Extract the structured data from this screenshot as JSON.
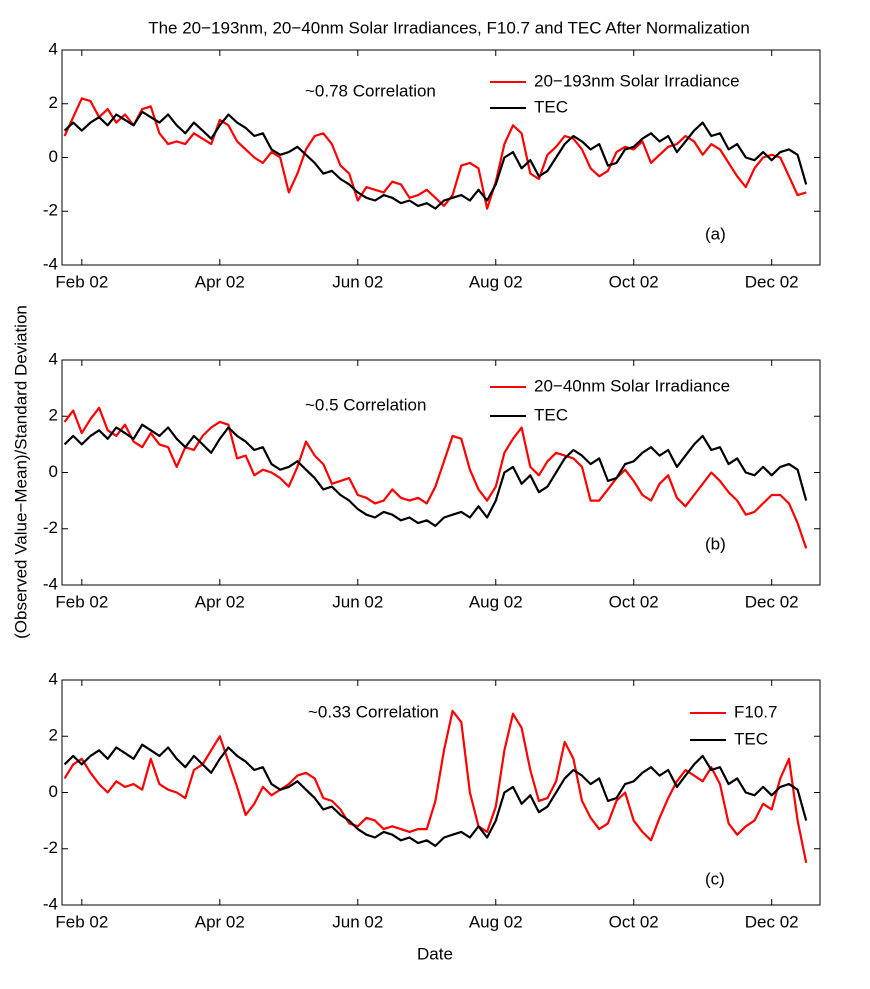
{
  "figure": {
    "title": "The 20−193nm, 20−40nm Solar Irradiances, F10.7 and TEC After Normalization",
    "xlabel": "Date",
    "ylabel": "(Observed Value−Mean)/Standard Deviation"
  },
  "chart_data": [
    {
      "type": "line",
      "annotation": "~0.78 Correlation",
      "panel_label": "(a)",
      "categories": [
        null,
        null,
        "Feb 02",
        null,
        null,
        null,
        null,
        null,
        null,
        null,
        null,
        null,
        null,
        null,
        null,
        null,
        null,
        null,
        "Apr 02",
        null,
        null,
        null,
        null,
        null,
        null,
        null,
        null,
        null,
        null,
        null,
        null,
        null,
        null,
        null,
        "Jun 02",
        null,
        null,
        null,
        null,
        null,
        null,
        null,
        null,
        null,
        null,
        null,
        null,
        null,
        null,
        null,
        "Aug 02",
        null,
        null,
        null,
        null,
        null,
        null,
        null,
        null,
        null,
        null,
        null,
        null,
        null,
        null,
        null,
        "Oct 02",
        null,
        null,
        null,
        null,
        null,
        null,
        null,
        null,
        null,
        null,
        null,
        null,
        null,
        null,
        null,
        "Dec 02",
        null,
        null,
        null,
        null
      ],
      "ylim": [
        -4,
        4
      ],
      "yticks": [
        -4,
        -2,
        0,
        2,
        4
      ],
      "series": [
        {
          "name": "20−193nm Solar Irradiance",
          "color": "#ff0000",
          "values": [
            0.8,
            1.5,
            2.2,
            2.1,
            1.5,
            1.8,
            1.3,
            1.6,
            1.2,
            1.8,
            1.9,
            0.9,
            0.5,
            0.6,
            0.5,
            0.9,
            0.7,
            0.5,
            1.4,
            1.2,
            0.6,
            0.3,
            0.0,
            -0.2,
            0.2,
            0.0,
            -1.3,
            -0.6,
            0.3,
            0.8,
            0.9,
            0.5,
            -0.3,
            -0.6,
            -1.6,
            -1.1,
            -1.2,
            -1.3,
            -0.9,
            -1.0,
            -1.5,
            -1.4,
            -1.2,
            -1.5,
            -1.8,
            -1.4,
            -0.3,
            -0.2,
            -0.4,
            -1.9,
            -0.9,
            0.5,
            1.2,
            0.9,
            -0.6,
            -0.8,
            0.1,
            0.4,
            0.8,
            0.7,
            0.3,
            -0.4,
            -0.7,
            -0.5,
            0.2,
            0.4,
            0.3,
            0.6,
            -0.2,
            0.1,
            0.4,
            0.5,
            0.8,
            0.6,
            0.1,
            0.5,
            0.3,
            -0.2,
            -0.7,
            -1.1,
            -0.4,
            0.0,
            0.1,
            0.0,
            -0.7,
            -1.4,
            -1.3
          ]
        },
        {
          "name": "TEC",
          "color": "#000000",
          "values": [
            1.0,
            1.3,
            1.0,
            1.3,
            1.5,
            1.2,
            1.6,
            1.4,
            1.2,
            1.7,
            1.5,
            1.3,
            1.6,
            1.2,
            0.9,
            1.3,
            1.0,
            0.7,
            1.2,
            1.6,
            1.3,
            1.1,
            0.8,
            0.9,
            0.3,
            0.1,
            0.2,
            0.4,
            0.1,
            -0.2,
            -0.6,
            -0.5,
            -0.8,
            -1.0,
            -1.3,
            -1.5,
            -1.6,
            -1.4,
            -1.5,
            -1.7,
            -1.6,
            -1.8,
            -1.7,
            -1.9,
            -1.6,
            -1.5,
            -1.4,
            -1.6,
            -1.2,
            -1.6,
            -1.0,
            0.0,
            0.2,
            -0.4,
            -0.1,
            -0.7,
            -0.5,
            0.0,
            0.5,
            0.8,
            0.6,
            0.3,
            0.5,
            -0.3,
            -0.2,
            0.3,
            0.4,
            0.7,
            0.9,
            0.6,
            0.8,
            0.2,
            0.6,
            1.0,
            1.3,
            0.8,
            0.9,
            0.3,
            0.5,
            0.0,
            -0.1,
            0.2,
            -0.1,
            0.2,
            0.3,
            0.1,
            -1.0
          ]
        }
      ]
    },
    {
      "type": "line",
      "annotation": "~0.5 Correlation",
      "panel_label": "(b)",
      "categories": [
        null,
        null,
        "Feb 02",
        null,
        null,
        null,
        null,
        null,
        null,
        null,
        null,
        null,
        null,
        null,
        null,
        null,
        null,
        null,
        "Apr 02",
        null,
        null,
        null,
        null,
        null,
        null,
        null,
        null,
        null,
        null,
        null,
        null,
        null,
        null,
        null,
        "Jun 02",
        null,
        null,
        null,
        null,
        null,
        null,
        null,
        null,
        null,
        null,
        null,
        null,
        null,
        null,
        null,
        "Aug 02",
        null,
        null,
        null,
        null,
        null,
        null,
        null,
        null,
        null,
        null,
        null,
        null,
        null,
        null,
        null,
        "Oct 02",
        null,
        null,
        null,
        null,
        null,
        null,
        null,
        null,
        null,
        null,
        null,
        null,
        null,
        null,
        null,
        "Dec 02",
        null,
        null,
        null,
        null
      ],
      "ylim": [
        -4,
        4
      ],
      "yticks": [
        -4,
        -2,
        0,
        2,
        4
      ],
      "series": [
        {
          "name": "20−40nm Solar Irradiance",
          "color": "#ff0000",
          "values": [
            1.8,
            2.2,
            1.4,
            1.9,
            2.3,
            1.5,
            1.3,
            1.7,
            1.1,
            0.9,
            1.4,
            1.0,
            0.9,
            0.2,
            0.9,
            0.8,
            1.3,
            1.6,
            1.8,
            1.7,
            0.5,
            0.6,
            -0.1,
            0.1,
            0.0,
            -0.2,
            -0.5,
            0.2,
            1.1,
            0.6,
            0.3,
            -0.4,
            -0.3,
            -0.2,
            -0.8,
            -0.9,
            -1.1,
            -1.0,
            -0.6,
            -0.9,
            -1.0,
            -0.9,
            -1.1,
            -0.5,
            0.4,
            1.3,
            1.2,
            0.1,
            -0.6,
            -1.0,
            -0.5,
            0.7,
            1.2,
            1.6,
            0.2,
            -0.1,
            0.4,
            0.7,
            0.6,
            0.5,
            0.2,
            -1.0,
            -1.0,
            -0.6,
            -0.2,
            0.1,
            -0.3,
            -0.8,
            -1.0,
            -0.4,
            -0.1,
            -0.9,
            -1.2,
            -0.8,
            -0.4,
            0.0,
            -0.3,
            -0.7,
            -1.0,
            -1.5,
            -1.4,
            -1.1,
            -0.8,
            -0.8,
            -1.1,
            -1.8,
            -2.7
          ]
        },
        {
          "name": "TEC",
          "color": "#000000",
          "values": [
            1.0,
            1.3,
            1.0,
            1.3,
            1.5,
            1.2,
            1.6,
            1.4,
            1.2,
            1.7,
            1.5,
            1.3,
            1.6,
            1.2,
            0.9,
            1.3,
            1.0,
            0.7,
            1.2,
            1.6,
            1.3,
            1.1,
            0.8,
            0.9,
            0.3,
            0.1,
            0.2,
            0.4,
            0.1,
            -0.2,
            -0.6,
            -0.5,
            -0.8,
            -1.0,
            -1.3,
            -1.5,
            -1.6,
            -1.4,
            -1.5,
            -1.7,
            -1.6,
            -1.8,
            -1.7,
            -1.9,
            -1.6,
            -1.5,
            -1.4,
            -1.6,
            -1.2,
            -1.6,
            -1.0,
            0.0,
            0.2,
            -0.4,
            -0.1,
            -0.7,
            -0.5,
            0.0,
            0.5,
            0.8,
            0.6,
            0.3,
            0.5,
            -0.3,
            -0.2,
            0.3,
            0.4,
            0.7,
            0.9,
            0.6,
            0.8,
            0.2,
            0.6,
            1.0,
            1.3,
            0.8,
            0.9,
            0.3,
            0.5,
            0.0,
            -0.1,
            0.2,
            -0.1,
            0.2,
            0.3,
            0.1,
            -1.0
          ]
        }
      ]
    },
    {
      "type": "line",
      "annotation": "~0.33 Correlation",
      "panel_label": "(c)",
      "categories": [
        null,
        null,
        "Feb 02",
        null,
        null,
        null,
        null,
        null,
        null,
        null,
        null,
        null,
        null,
        null,
        null,
        null,
        null,
        null,
        "Apr 02",
        null,
        null,
        null,
        null,
        null,
        null,
        null,
        null,
        null,
        null,
        null,
        null,
        null,
        null,
        null,
        "Jun 02",
        null,
        null,
        null,
        null,
        null,
        null,
        null,
        null,
        null,
        null,
        null,
        null,
        null,
        null,
        null,
        "Aug 02",
        null,
        null,
        null,
        null,
        null,
        null,
        null,
        null,
        null,
        null,
        null,
        null,
        null,
        null,
        null,
        "Oct 02",
        null,
        null,
        null,
        null,
        null,
        null,
        null,
        null,
        null,
        null,
        null,
        null,
        null,
        null,
        null,
        "Dec 02",
        null,
        null,
        null,
        null
      ],
      "ylim": [
        -4,
        4
      ],
      "yticks": [
        -4,
        -2,
        0,
        2,
        4
      ],
      "series": [
        {
          "name": "F10.7",
          "color": "#ff0000",
          "values": [
            0.5,
            1.0,
            1.2,
            0.7,
            0.3,
            0.0,
            0.4,
            0.2,
            0.3,
            0.1,
            1.2,
            0.3,
            0.1,
            0.0,
            -0.2,
            0.8,
            1.0,
            1.5,
            2.0,
            1.1,
            0.2,
            -0.8,
            -0.4,
            0.2,
            -0.1,
            0.1,
            0.3,
            0.6,
            0.7,
            0.5,
            -0.2,
            -0.3,
            -0.6,
            -1.1,
            -1.2,
            -0.9,
            -1.0,
            -1.3,
            -1.2,
            -1.3,
            -1.4,
            -1.3,
            -1.3,
            -0.3,
            1.5,
            2.9,
            2.5,
            0.0,
            -1.2,
            -1.4,
            -0.5,
            1.5,
            2.8,
            2.3,
            0.8,
            -0.3,
            -0.2,
            0.4,
            1.8,
            1.2,
            -0.3,
            -0.9,
            -1.3,
            -1.1,
            -0.3,
            0.0,
            -1.0,
            -1.4,
            -1.7,
            -0.9,
            -0.2,
            0.4,
            0.8,
            0.6,
            0.4,
            0.9,
            0.3,
            -1.1,
            -1.5,
            -1.2,
            -1.0,
            -0.4,
            -0.6,
            0.5,
            1.2,
            -1.0,
            -2.5
          ]
        },
        {
          "name": "TEC",
          "color": "#000000",
          "values": [
            1.0,
            1.3,
            1.0,
            1.3,
            1.5,
            1.2,
            1.6,
            1.4,
            1.2,
            1.7,
            1.5,
            1.3,
            1.6,
            1.2,
            0.9,
            1.3,
            1.0,
            0.7,
            1.2,
            1.6,
            1.3,
            1.1,
            0.8,
            0.9,
            0.3,
            0.1,
            0.2,
            0.4,
            0.1,
            -0.2,
            -0.6,
            -0.5,
            -0.8,
            -1.0,
            -1.3,
            -1.5,
            -1.6,
            -1.4,
            -1.5,
            -1.7,
            -1.6,
            -1.8,
            -1.7,
            -1.9,
            -1.6,
            -1.5,
            -1.4,
            -1.6,
            -1.2,
            -1.6,
            -1.0,
            0.0,
            0.2,
            -0.4,
            -0.1,
            -0.7,
            -0.5,
            0.0,
            0.5,
            0.8,
            0.6,
            0.3,
            0.5,
            -0.3,
            -0.2,
            0.3,
            0.4,
            0.7,
            0.9,
            0.6,
            0.8,
            0.2,
            0.6,
            1.0,
            1.3,
            0.8,
            0.9,
            0.3,
            0.5,
            0.0,
            -0.1,
            0.2,
            -0.1,
            0.2,
            0.3,
            0.1,
            -1.0
          ]
        }
      ]
    }
  ]
}
